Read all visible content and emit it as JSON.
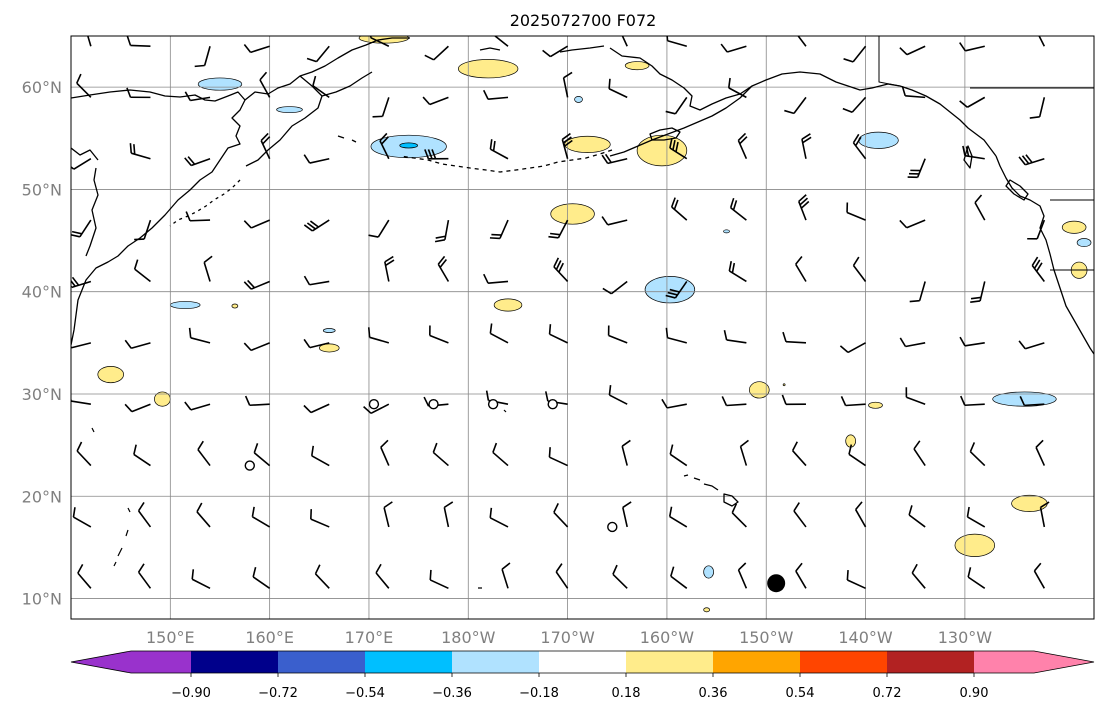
{
  "title": "2025072700 F072",
  "map": {
    "lon_range": [
      140,
      243
    ],
    "lat_range": [
      8,
      65
    ],
    "lat_ticks": [
      {
        "value": 10,
        "label": "10°N"
      },
      {
        "value": 20,
        "label": "20°N"
      },
      {
        "value": 30,
        "label": "30°N"
      },
      {
        "value": 40,
        "label": "40°N"
      },
      {
        "value": 50,
        "label": "50°N"
      },
      {
        "value": 60,
        "label": "60°N"
      }
    ],
    "lon_ticks": [
      {
        "value": 150,
        "label": "150°E"
      },
      {
        "value": 160,
        "label": "160°E"
      },
      {
        "value": 170,
        "label": "170°E"
      },
      {
        "value": 180,
        "label": "180°W"
      },
      {
        "value": 190,
        "label": "170°W"
      },
      {
        "value": 200,
        "label": "160°W"
      },
      {
        "value": 210,
        "label": "150°W"
      },
      {
        "value": 220,
        "label": "140°W"
      },
      {
        "value": 230,
        "label": "130°W"
      }
    ],
    "gridlines": true,
    "marker": {
      "name": "station-marker",
      "lon": 211,
      "lat": 11.5,
      "color": "#000000"
    },
    "calm_circles": [
      {
        "lon": 170.5,
        "lat": 29
      },
      {
        "lon": 176.5,
        "lat": 29
      },
      {
        "lon": 182.5,
        "lat": 29
      },
      {
        "lon": 188.5,
        "lat": 29
      },
      {
        "lon": 158,
        "lat": 23
      },
      {
        "lon": 194.5,
        "lat": 17
      }
    ],
    "anomalies": [
      {
        "lon": 171.5,
        "lat": 64.8,
        "rx": 2.5,
        "ry": 0.5,
        "value": 0.25
      },
      {
        "lon": 182,
        "lat": 61.8,
        "rx": 3,
        "ry": 0.9,
        "value": 0.25
      },
      {
        "lon": 197,
        "lat": 62.1,
        "rx": 1.2,
        "ry": 0.4,
        "value": 0.25
      },
      {
        "lon": 192,
        "lat": 54.4,
        "rx": 2.3,
        "ry": 0.8,
        "value": 0.25
      },
      {
        "lon": 199.5,
        "lat": 53.8,
        "rx": 2.5,
        "ry": 1.5,
        "value": 0.25
      },
      {
        "lon": 190.5,
        "lat": 47.6,
        "rx": 2.2,
        "ry": 1.0,
        "value": 0.25
      },
      {
        "lon": 184,
        "lat": 38.7,
        "rx": 1.4,
        "ry": 0.6,
        "value": 0.25
      },
      {
        "lon": 156.5,
        "lat": 38.6,
        "rx": 0.3,
        "ry": 0.2,
        "value": 0.25
      },
      {
        "lon": 166,
        "lat": 34.5,
        "rx": 1.0,
        "ry": 0.4,
        "value": 0.25
      },
      {
        "lon": 144,
        "lat": 31.9,
        "rx": 1.3,
        "ry": 0.8,
        "value": 0.25
      },
      {
        "lon": 149.2,
        "lat": 29.5,
        "rx": 0.8,
        "ry": 0.7,
        "value": 0.25
      },
      {
        "lon": 209.3,
        "lat": 30.4,
        "rx": 1.0,
        "ry": 0.8,
        "value": 0.25
      },
      {
        "lon": 211.8,
        "lat": 30.9,
        "rx": 0.1,
        "ry": 0.1,
        "value": 0.25
      },
      {
        "lon": 221,
        "lat": 28.9,
        "rx": 0.7,
        "ry": 0.3,
        "value": 0.25
      },
      {
        "lon": 218.5,
        "lat": 25.4,
        "rx": 0.5,
        "ry": 0.6,
        "value": 0.25
      },
      {
        "lon": 236.5,
        "lat": 19.3,
        "rx": 1.8,
        "ry": 0.8,
        "value": 0.25
      },
      {
        "lon": 231,
        "lat": 15.2,
        "rx": 2.0,
        "ry": 1.1,
        "value": 0.25
      },
      {
        "lon": 204,
        "lat": 8.9,
        "rx": 0.3,
        "ry": 0.2,
        "value": 0.25
      },
      {
        "lon": 241,
        "lat": 46.3,
        "rx": 1.2,
        "ry": 0.6,
        "value": 0.25
      },
      {
        "lon": 241.5,
        "lat": 42.1,
        "rx": 0.8,
        "ry": 0.8,
        "value": 0.25
      },
      {
        "lon": 155,
        "lat": 60.3,
        "rx": 2.2,
        "ry": 0.6,
        "value": -0.25
      },
      {
        "lon": 162,
        "lat": 57.8,
        "rx": 1.3,
        "ry": 0.3,
        "value": -0.25
      },
      {
        "lon": 174,
        "lat": 54.2,
        "rx": 3.8,
        "ry": 1.1,
        "value": -0.25
      },
      {
        "lon": 174,
        "lat": 54.3,
        "rx": 0.9,
        "ry": 0.25,
        "value": -0.45
      },
      {
        "lon": 191.1,
        "lat": 58.8,
        "rx": 0.4,
        "ry": 0.3,
        "value": -0.25
      },
      {
        "lon": 206,
        "lat": 45.9,
        "rx": 0.3,
        "ry": 0.15,
        "value": -0.25
      },
      {
        "lon": 221.3,
        "lat": 54.8,
        "rx": 2.0,
        "ry": 0.8,
        "value": -0.25
      },
      {
        "lon": 200.3,
        "lat": 40.2,
        "rx": 2.5,
        "ry": 1.3,
        "value": -0.25
      },
      {
        "lon": 151.5,
        "lat": 38.7,
        "rx": 1.5,
        "ry": 0.35,
        "value": -0.25
      },
      {
        "lon": 166,
        "lat": 36.2,
        "rx": 0.6,
        "ry": 0.2,
        "value": -0.25
      },
      {
        "lon": 236,
        "lat": 29.5,
        "rx": 3.2,
        "ry": 0.7,
        "value": -0.25
      },
      {
        "lon": 204.2,
        "lat": 12.6,
        "rx": 0.5,
        "ry": 0.6,
        "value": -0.25
      },
      {
        "lon": 242,
        "lat": 44.8,
        "rx": 0.7,
        "ry": 0.4,
        "value": -0.25
      }
    ]
  },
  "colorbar": {
    "colors": [
      "#9932cc",
      "#00008b",
      "#3a5fcd",
      "#00bfff",
      "#b0e2ff",
      "#ffffff",
      "#ffec8b",
      "#ffa500",
      "#ff4500",
      "#b22222",
      "#ff82ab"
    ],
    "tick_labels": [
      "−0.90",
      "−0.72",
      "−0.54",
      "−0.36",
      "−0.18",
      "0.18",
      "0.36",
      "0.54",
      "0.72",
      "0.90"
    ]
  },
  "chart_data": {
    "type": "map",
    "title": "2025072700 F072",
    "extent": {
      "lon": [
        140,
        243
      ],
      "lat": [
        8,
        65
      ]
    },
    "contour_levels": [
      -0.9,
      -0.72,
      -0.54,
      -0.36,
      -0.18,
      0.18,
      0.36,
      0.54,
      0.72,
      0.9
    ],
    "barb_grid": {
      "lons": [
        142,
        148,
        154,
        160,
        166,
        172,
        178,
        184,
        190,
        196,
        202,
        208,
        214,
        220,
        226,
        232,
        238
      ],
      "lats": [
        11,
        17,
        23,
        29,
        35,
        41,
        47,
        53,
        59,
        64
      ]
    }
  }
}
